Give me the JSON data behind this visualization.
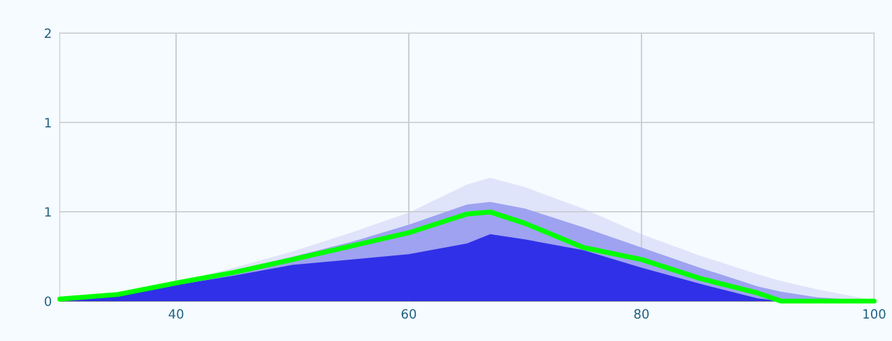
{
  "chart_data": {
    "type": "line",
    "x": [
      30,
      35,
      40,
      45,
      50,
      55,
      60,
      65,
      67,
      70,
      75,
      80,
      85,
      90,
      92,
      95,
      100
    ],
    "series": [
      {
        "type": "area",
        "color": "#e0e4fa",
        "values": [
          0.015,
          0.06,
          0.14,
          0.25,
          0.37,
          0.51,
          0.66,
          0.87,
          0.92,
          0.85,
          0.69,
          0.5,
          0.34,
          0.2,
          0.15,
          0.09,
          0.005
        ]
      },
      {
        "type": "area",
        "color": "#9ea2f0",
        "values": [
          0.015,
          0.055,
          0.13,
          0.23,
          0.33,
          0.44,
          0.57,
          0.72,
          0.74,
          0.69,
          0.55,
          0.4,
          0.25,
          0.11,
          0.07,
          0.03,
          0.0
        ]
      },
      {
        "type": "area",
        "color": "#3030e8",
        "values": [
          0.01,
          0.05,
          0.12,
          0.19,
          0.27,
          0.31,
          0.35,
          0.43,
          0.5,
          0.46,
          0.38,
          0.25,
          0.13,
          0.02,
          0.0,
          0.0,
          0.0
        ]
      },
      {
        "color": "#00ff00",
        "values": [
          0.015,
          0.05,
          0.135,
          0.215,
          0.31,
          0.41,
          0.51,
          0.65,
          0.665,
          0.58,
          0.4,
          0.31,
          0.17,
          0.06,
          0.0,
          0.0,
          0.0
        ]
      }
    ],
    "xlim": [
      30,
      100
    ],
    "xticks": [
      40,
      60,
      80,
      100
    ],
    "ylim": [
      0,
      2
    ],
    "yticks": [
      0,
      {
        "value": 0.667,
        "label": "1"
      },
      {
        "value": 1.333,
        "label": "1"
      },
      2
    ],
    "grid": true,
    "line_style": "solid"
  }
}
